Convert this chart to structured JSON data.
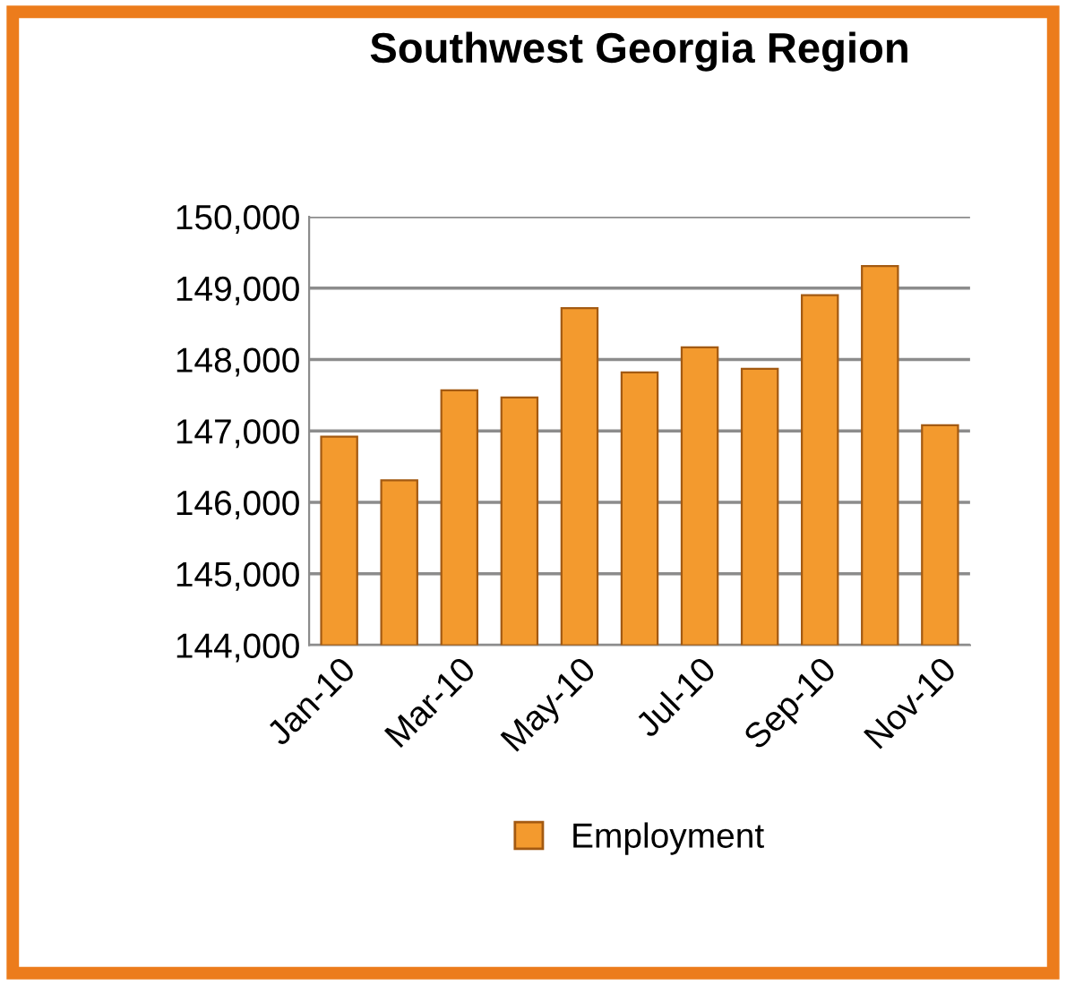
{
  "chart_data": {
    "type": "bar",
    "title": "Southwest Georgia Region",
    "categories": [
      "Jan-10",
      null,
      "Mar-10",
      null,
      "May-10",
      null,
      "Jul-10",
      null,
      "Sep-10",
      null,
      "Nov-10"
    ],
    "series": [
      {
        "name": "Employment",
        "color": "#f39a2e",
        "values": [
          146920,
          146310,
          147570,
          147470,
          148720,
          147820,
          148170,
          147870,
          148900,
          149310,
          147080
        ]
      }
    ],
    "ylim": [
      144000,
      150000
    ],
    "yticks": [
      {
        "value": 144000,
        "label": "144,000"
      },
      {
        "value": 145000,
        "label": "145,000"
      },
      {
        "value": 146000,
        "label": "146,000"
      },
      {
        "value": 147000,
        "label": "147,000"
      },
      {
        "value": 148000,
        "label": "148,000"
      },
      {
        "value": 149000,
        "label": "149,000"
      },
      {
        "value": 150000,
        "label": "150,000"
      }
    ],
    "grid": "y",
    "legend": "bottom"
  }
}
